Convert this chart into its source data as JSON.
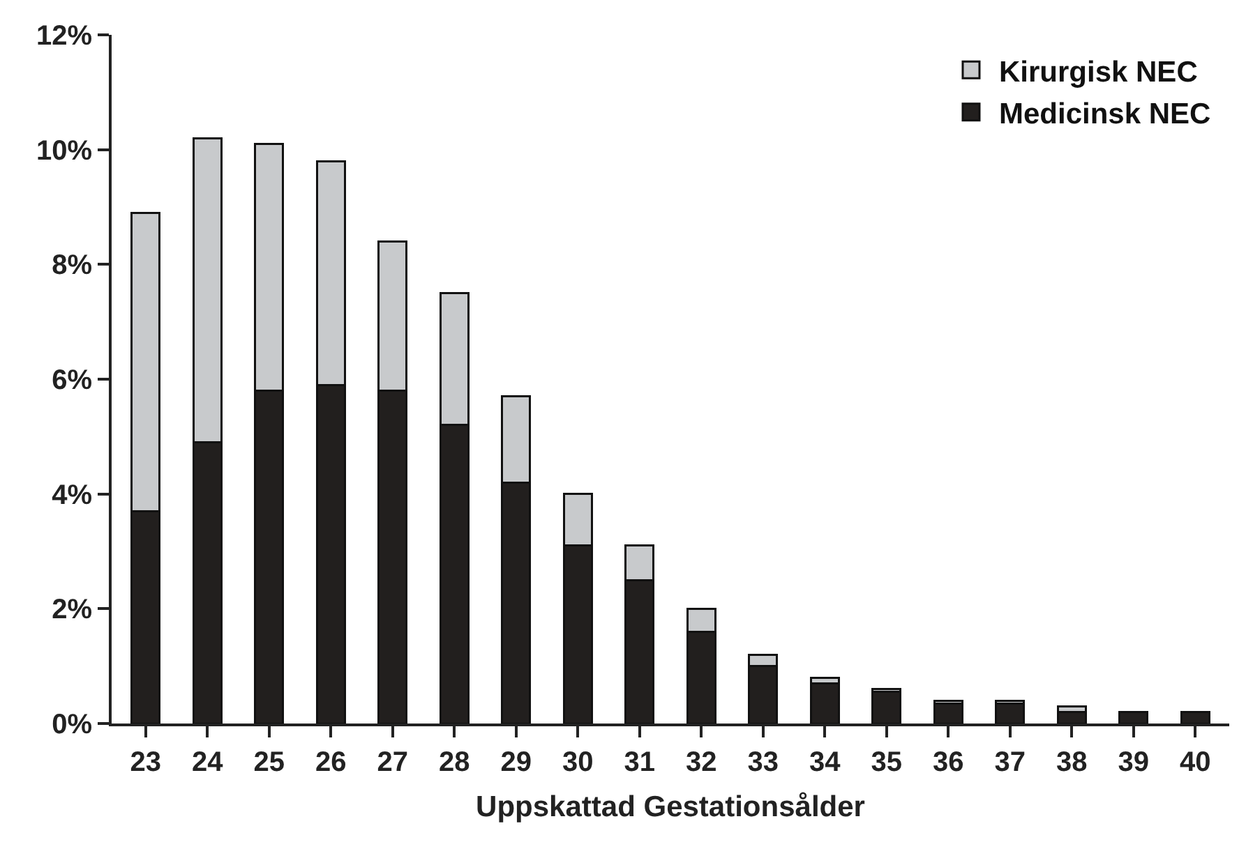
{
  "chart_data": {
    "type": "bar",
    "stacked": true,
    "xlabel": "Uppskattad Gestationsålder",
    "categories": [
      "23",
      "24",
      "25",
      "26",
      "27",
      "28",
      "29",
      "30",
      "31",
      "32",
      "33",
      "34",
      "35",
      "36",
      "37",
      "38",
      "39",
      "40"
    ],
    "series": [
      {
        "name": "Medicinsk NEC",
        "color": "#221f1e",
        "values": [
          3.7,
          4.9,
          5.8,
          5.9,
          5.8,
          5.2,
          4.2,
          3.1,
          2.5,
          1.6,
          1.0,
          0.7,
          0.55,
          0.35,
          0.35,
          0.2,
          0.2,
          0.2
        ]
      },
      {
        "name": "Kirurgisk NEC",
        "color": "#c8cacc",
        "values": [
          5.2,
          5.3,
          4.3,
          3.9,
          2.6,
          2.3,
          1.5,
          0.9,
          0.6,
          0.4,
          0.2,
          0.1,
          0.05,
          0.05,
          0.05,
          0.1,
          0,
          0
        ]
      }
    ],
    "ylim": [
      0,
      12
    ],
    "yticks": [
      {
        "value": 0,
        "label": "0%"
      },
      {
        "value": 2,
        "label": "2%"
      },
      {
        "value": 4,
        "label": "4%"
      },
      {
        "value": 6,
        "label": "6%"
      },
      {
        "value": 8,
        "label": "8%"
      },
      {
        "value": 10,
        "label": "10%"
      },
      {
        "value": 12,
        "label": "12%"
      }
    ],
    "grid": false,
    "legend": "top right"
  }
}
